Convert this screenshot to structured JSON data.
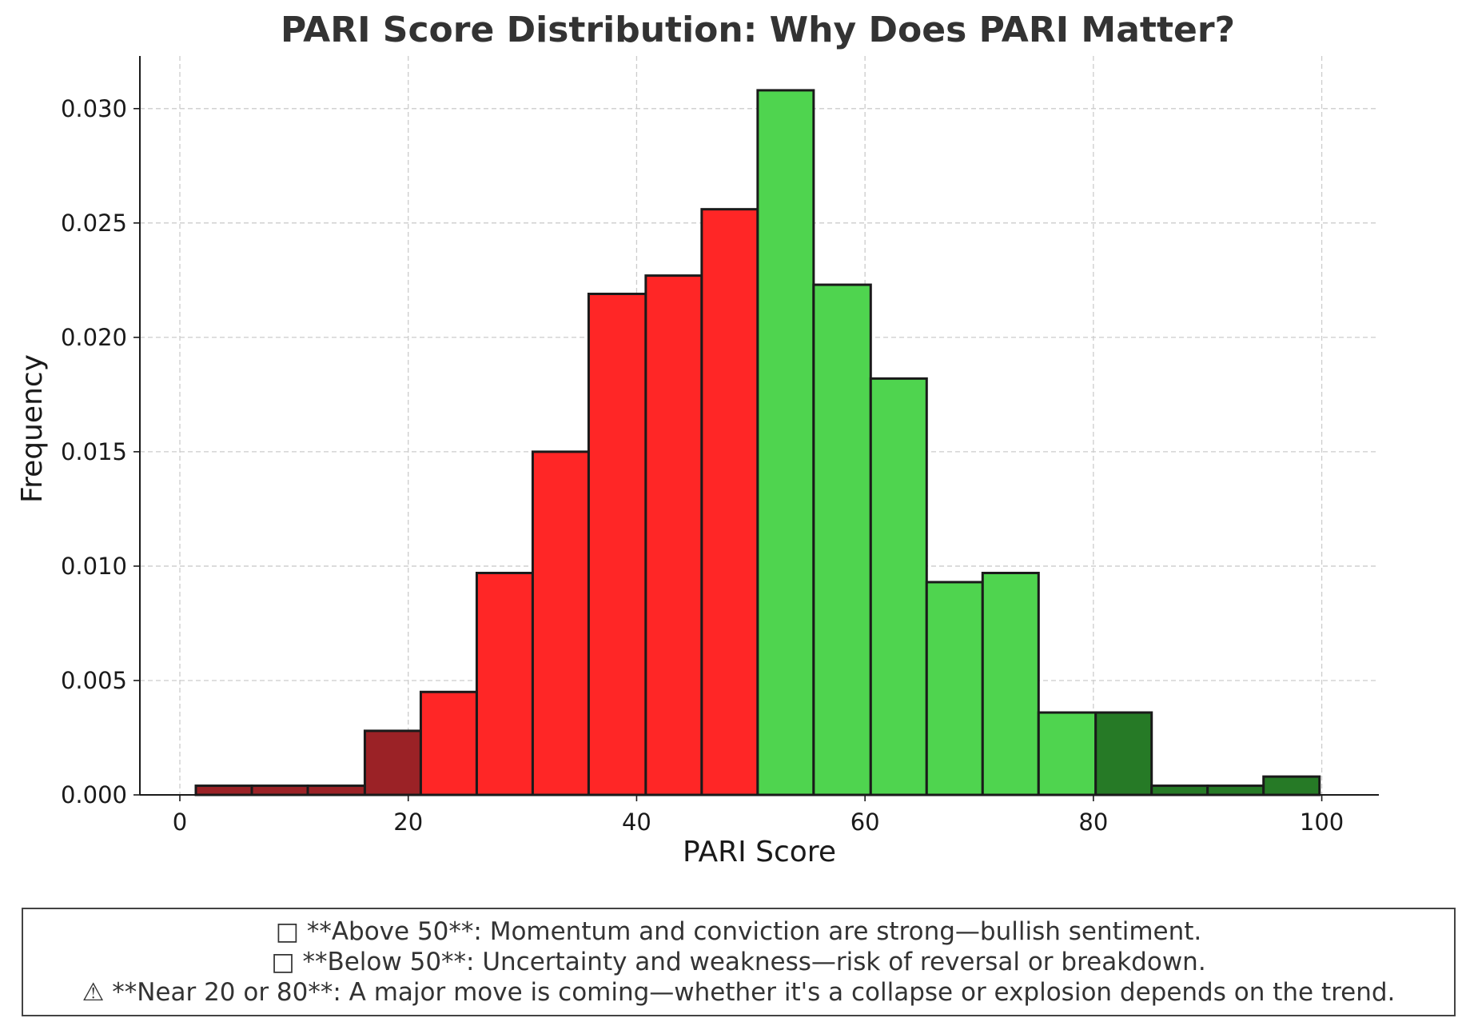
{
  "chart_data": {
    "type": "bar",
    "title": "PARI Score Distribution: Why Does PARI Matter?",
    "xlabel": "PARI Score",
    "ylabel": "Frequency",
    "xlim": [
      -3.5,
      105
    ],
    "ylim": [
      0,
      0.0323
    ],
    "xticks": [
      0,
      20,
      40,
      60,
      80,
      100
    ],
    "yticks": [
      0.0,
      0.005,
      0.01,
      0.015,
      0.02,
      0.025,
      0.03
    ],
    "ytick_labels": [
      "0.000",
      "0.005",
      "0.010",
      "0.015",
      "0.020",
      "0.025",
      "0.030"
    ],
    "grid": true,
    "bins": [
      {
        "x0": 1.4,
        "x1": 6.3,
        "value": 0.0004,
        "color": "#9b2226"
      },
      {
        "x0": 6.3,
        "x1": 11.2,
        "value": 0.0004,
        "color": "#9b2226"
      },
      {
        "x0": 11.2,
        "x1": 16.2,
        "value": 0.0004,
        "color": "#9b2226"
      },
      {
        "x0": 16.2,
        "x1": 21.1,
        "value": 0.0028,
        "color": "#9b2226"
      },
      {
        "x0": 21.1,
        "x1": 26.0,
        "value": 0.0045,
        "color": "#ff2626"
      },
      {
        "x0": 26.0,
        "x1": 30.9,
        "value": 0.0097,
        "color": "#ff2626"
      },
      {
        "x0": 30.9,
        "x1": 35.8,
        "value": 0.015,
        "color": "#ff2626"
      },
      {
        "x0": 35.8,
        "x1": 40.8,
        "value": 0.0219,
        "color": "#ff2626"
      },
      {
        "x0": 40.8,
        "x1": 45.7,
        "value": 0.0227,
        "color": "#ff2626"
      },
      {
        "x0": 45.7,
        "x1": 50.6,
        "value": 0.0256,
        "color": "#ff2626"
      },
      {
        "x0": 50.6,
        "x1": 55.5,
        "value": 0.0308,
        "color": "#4fd44f"
      },
      {
        "x0": 55.5,
        "x1": 60.5,
        "value": 0.0223,
        "color": "#4fd44f"
      },
      {
        "x0": 60.5,
        "x1": 65.4,
        "value": 0.0182,
        "color": "#4fd44f"
      },
      {
        "x0": 65.4,
        "x1": 70.3,
        "value": 0.0093,
        "color": "#4fd44f"
      },
      {
        "x0": 70.3,
        "x1": 75.2,
        "value": 0.0097,
        "color": "#4fd44f"
      },
      {
        "x0": 75.2,
        "x1": 80.2,
        "value": 0.0036,
        "color": "#4fd44f"
      },
      {
        "x0": 80.2,
        "x1": 85.1,
        "value": 0.0036,
        "color": "#267a26"
      },
      {
        "x0": 85.1,
        "x1": 90.0,
        "value": 0.0004,
        "color": "#267a26"
      },
      {
        "x0": 90.0,
        "x1": 94.9,
        "value": 0.0004,
        "color": "#267a26"
      },
      {
        "x0": 94.9,
        "x1": 99.8,
        "value": 0.0008,
        "color": "#267a26"
      }
    ],
    "colors": {
      "extreme_low": "#9b2226",
      "below_50": "#ff2626",
      "above_50": "#4fd44f",
      "extreme_high": "#267a26",
      "edge": "#1a1a1a"
    }
  },
  "notes": [
    "□ **Above 50**: Momentum and conviction are strong—bullish sentiment.",
    "□ **Below 50**: Uncertainty and weakness—risk of reversal or breakdown.",
    "⚠ **Near 20 or 80**: A major move is coming—whether it's a collapse or explosion depends on the trend."
  ]
}
